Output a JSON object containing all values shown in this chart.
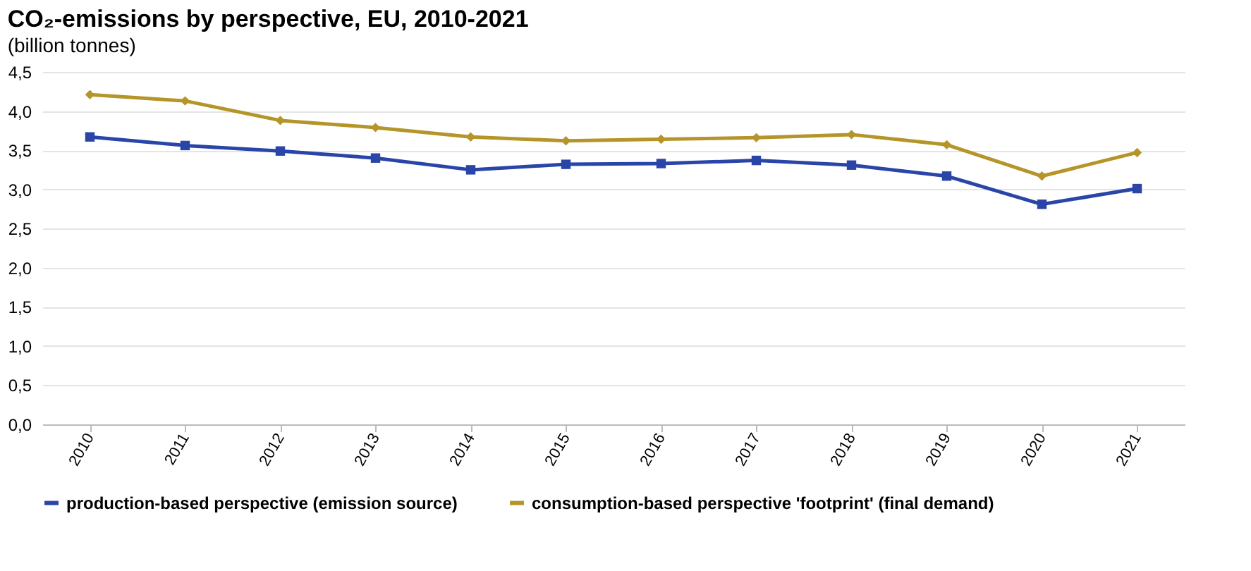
{
  "chart_data": {
    "type": "line",
    "title": "CO₂-emissions by perspective, EU, 2010-2021",
    "subtitle": "(billion tonnes)",
    "categories": [
      "2010",
      "2011",
      "2012",
      "2013",
      "2014",
      "2015",
      "2016",
      "2017",
      "2018",
      "2019",
      "2020",
      "2021"
    ],
    "series": [
      {
        "name": "production-based perspective (emission source)",
        "color": "#2a45a8",
        "marker": "square",
        "values": [
          3.67,
          3.56,
          3.49,
          3.4,
          3.25,
          3.32,
          3.33,
          3.37,
          3.31,
          3.17,
          2.81,
          3.01
        ]
      },
      {
        "name": "consumption-based perspective 'footprint' (final demand)",
        "color": "#b5952a",
        "marker": "diamond",
        "values": [
          4.21,
          4.13,
          3.88,
          3.79,
          3.67,
          3.62,
          3.64,
          3.66,
          3.7,
          3.57,
          3.17,
          3.47
        ]
      }
    ],
    "ylim": [
      0,
      4.5
    ],
    "yticks": [
      {
        "value": 0,
        "label": "0,0"
      },
      {
        "value": 0.5,
        "label": "0,5"
      },
      {
        "value": 1,
        "label": "1,0"
      },
      {
        "value": 1.5,
        "label": "1,5"
      },
      {
        "value": 2,
        "label": "2,0"
      },
      {
        "value": 2.5,
        "label": "2,5"
      },
      {
        "value": 3,
        "label": "3,0"
      },
      {
        "value": 3.5,
        "label": "3,5"
      },
      {
        "value": 4,
        "label": "4,0"
      },
      {
        "value": 4.5,
        "label": "4,5"
      }
    ],
    "grid": "y",
    "legend": "bottom",
    "line_style": "solid"
  }
}
